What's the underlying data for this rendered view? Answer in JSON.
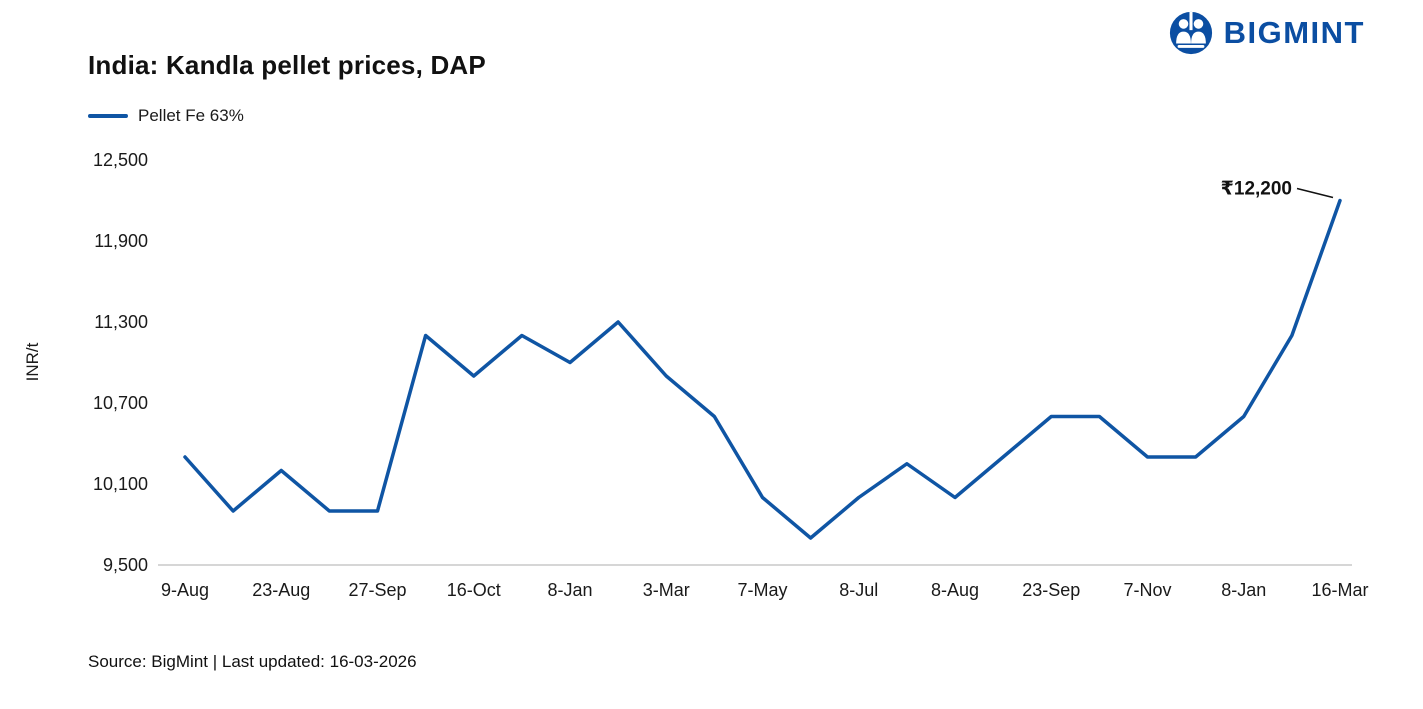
{
  "title": "India: Kandla pellet prices, DAP",
  "brand": {
    "name": "BIGMINT",
    "color": "#0b4ea2"
  },
  "legend": {
    "label": "Pellet Fe 63%"
  },
  "source_note": "Source: BigMint | Last updated: 16-03-2026",
  "annotation": {
    "text": "₹12,200"
  },
  "line_color": "#0f55a4",
  "chart_data": {
    "type": "line",
    "title": "India: Kandla pellet prices, DAP",
    "ylabel": "INR/t",
    "ylim": [
      9500,
      12500
    ],
    "yticks": [
      9500,
      10100,
      10700,
      11300,
      11900,
      12500
    ],
    "ytick_labels": [
      "9,500",
      "10,100",
      "10,700",
      "11,300",
      "11,900",
      "12,500"
    ],
    "x_tick_labels": [
      "9-Aug",
      "23-Aug",
      "27-Sep",
      "16-Oct",
      "8-Jan",
      "3-Mar",
      "7-May",
      "8-Jul",
      "8-Aug",
      "23-Sep",
      "7-Nov",
      "8-Jan",
      "16-Mar"
    ],
    "x_tick_positions": [
      0,
      2,
      4,
      6,
      8,
      10,
      12,
      14,
      16,
      18,
      20,
      22,
      24
    ],
    "grid": false,
    "legend_position": "top-left",
    "series": [
      {
        "name": "Pellet Fe 63%",
        "values": [
          10300,
          9900,
          10200,
          9900,
          9900,
          11200,
          10900,
          11200,
          11000,
          11300,
          10900,
          10600,
          10000,
          9700,
          10000,
          10250,
          10000,
          10300,
          10600,
          10600,
          10300,
          10300,
          10600,
          11200,
          12200
        ]
      }
    ],
    "annotation": {
      "text": "₹12,200",
      "point_index": 24,
      "value": 12200
    }
  }
}
